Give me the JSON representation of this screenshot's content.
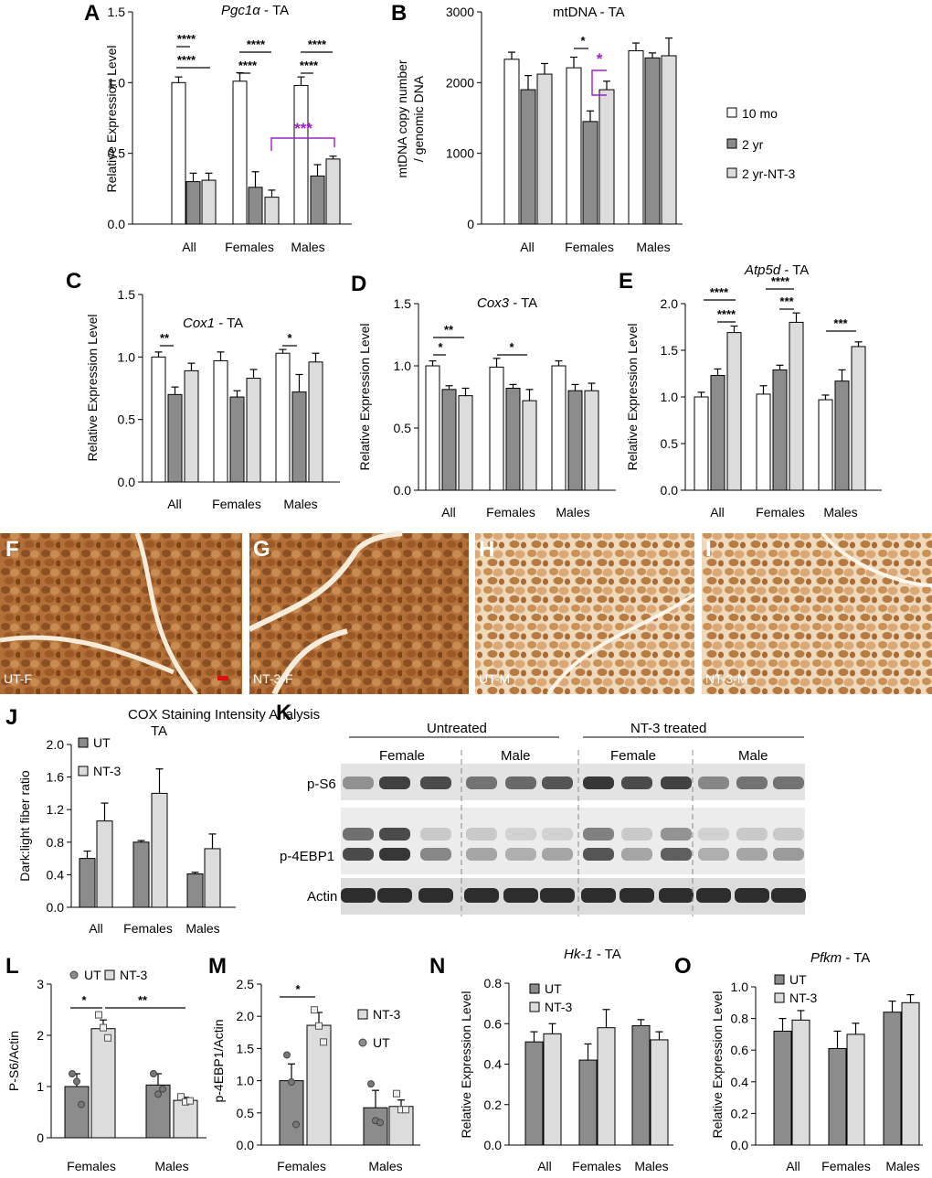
{
  "colors": {
    "white_bar": "#ffffff",
    "dark_bar": "#8c8c8c",
    "light_bar": "#dcdcdc",
    "sig_purple": "#a020c8",
    "stain": "#b5733a"
  },
  "legend_top": {
    "items": [
      "10 mo",
      "2 yr",
      "2 yr-NT-3"
    ]
  },
  "chart_data": [
    {
      "id": "A",
      "type": "bar",
      "title": "Pgc1α - TA",
      "title_italic_part": "Pgc1α",
      "title_rest": " - TA",
      "ylabel": "Relative Expression Level",
      "ylim": [
        0,
        1.5
      ],
      "yticks": [
        "0.0",
        "0.5",
        "1.0",
        "1.5"
      ],
      "categories": [
        "All",
        "Females",
        "Males"
      ],
      "series": [
        {
          "name": "10 mo",
          "values": [
            1.0,
            1.01,
            0.98
          ],
          "errors": [
            0.04,
            0.06,
            0.06
          ]
        },
        {
          "name": "2 yr",
          "values": [
            0.3,
            0.26,
            0.34
          ],
          "errors": [
            0.06,
            0.11,
            0.08
          ]
        },
        {
          "name": "2 yr-NT-3",
          "values": [
            0.31,
            0.19,
            0.46
          ],
          "errors": [
            0.05,
            0.05,
            0.02
          ]
        }
      ],
      "significance": [
        {
          "text": "****"
        },
        {
          "text": "****"
        },
        {
          "text": "****"
        },
        {
          "text": "****"
        },
        {
          "text": "****"
        },
        {
          "text": "****"
        },
        {
          "text": "***"
        }
      ]
    },
    {
      "id": "B",
      "type": "bar",
      "title": "mtDNA - TA",
      "ylabel": "mtDNA copy number / genomic DNA",
      "ylabel_lines": [
        "mtDNA copy number",
        "/ genomic DNA"
      ],
      "ylim": [
        0,
        3000
      ],
      "yticks": [
        "0",
        "1000",
        "2000",
        "3000"
      ],
      "categories": [
        "All",
        "Females",
        "Males"
      ],
      "series": [
        {
          "name": "10 mo",
          "values": [
            2330,
            2210,
            2450
          ],
          "errors": [
            100,
            150,
            110
          ]
        },
        {
          "name": "2 yr",
          "values": [
            1900,
            1450,
            2350
          ],
          "errors": [
            200,
            150,
            70
          ]
        },
        {
          "name": "2 yr-NT-3",
          "values": [
            2120,
            1900,
            2380
          ],
          "errors": [
            150,
            120,
            250
          ]
        }
      ],
      "significance": [
        {
          "text": "*"
        },
        {
          "text": "*"
        }
      ]
    },
    {
      "id": "C",
      "type": "bar",
      "title": "Cox1 - TA",
      "title_italic_part": "Cox1",
      "title_rest": " - TA",
      "ylabel": "Relative Expression Level",
      "ylim": [
        0,
        1.5
      ],
      "yticks": [
        "0.0",
        "0.5",
        "1.0",
        "1.5"
      ],
      "categories": [
        "All",
        "Females",
        "Males"
      ],
      "series": [
        {
          "name": "10 mo",
          "values": [
            1.0,
            0.97,
            1.03
          ],
          "errors": [
            0.04,
            0.07,
            0.03
          ]
        },
        {
          "name": "2 yr",
          "values": [
            0.7,
            0.68,
            0.72
          ],
          "errors": [
            0.06,
            0.05,
            0.14
          ]
        },
        {
          "name": "2 yr-NT-3",
          "values": [
            0.89,
            0.83,
            0.96
          ],
          "errors": [
            0.06,
            0.07,
            0.07
          ]
        }
      ],
      "significance": [
        {
          "text": "**"
        },
        {
          "text": "*"
        }
      ]
    },
    {
      "id": "D",
      "type": "bar",
      "title": "Cox3 - TA",
      "title_italic_part": "Cox3",
      "title_rest": " - TA",
      "ylabel": "Relative Expression Level",
      "ylim": [
        0,
        1.5
      ],
      "yticks": [
        "0.0",
        "0.5",
        "1.0",
        "1.5"
      ],
      "categories": [
        "All",
        "Females",
        "Males"
      ],
      "series": [
        {
          "name": "10 mo",
          "values": [
            1.0,
            0.99,
            1.0
          ],
          "errors": [
            0.04,
            0.07,
            0.04
          ]
        },
        {
          "name": "2 yr",
          "values": [
            0.81,
            0.82,
            0.8
          ],
          "errors": [
            0.03,
            0.03,
            0.05
          ]
        },
        {
          "name": "2 yr-NT-3",
          "values": [
            0.76,
            0.72,
            0.8
          ],
          "errors": [
            0.06,
            0.09,
            0.06
          ]
        }
      ],
      "significance": [
        {
          "text": "*"
        },
        {
          "text": "**"
        },
        {
          "text": "*"
        }
      ]
    },
    {
      "id": "E",
      "type": "bar",
      "title": "Atp5d - TA",
      "title_italic_part": "Atp5d",
      "title_rest": " - TA",
      "ylabel": "Relative Expression Level",
      "ylim": [
        0,
        2.0
      ],
      "yticks": [
        "0.0",
        "0.5",
        "1.0",
        "1.5",
        "2.0"
      ],
      "categories": [
        "All",
        "Females",
        "Males"
      ],
      "series": [
        {
          "name": "10 mo",
          "values": [
            1.0,
            1.03,
            0.97
          ],
          "errors": [
            0.05,
            0.09,
            0.05
          ]
        },
        {
          "name": "2 yr",
          "values": [
            1.23,
            1.29,
            1.17
          ],
          "errors": [
            0.07,
            0.05,
            0.12
          ]
        },
        {
          "name": "2 yr-NT-3",
          "values": [
            1.69,
            1.8,
            1.54
          ],
          "errors": [
            0.07,
            0.1,
            0.05
          ]
        }
      ],
      "significance": [
        {
          "text": "****"
        },
        {
          "text": "****"
        },
        {
          "text": "****"
        },
        {
          "text": "***"
        },
        {
          "text": "***"
        }
      ]
    },
    {
      "id": "J",
      "type": "bar",
      "title": "COX Staining Intensity Analysis",
      "title_line2": "TA",
      "ylabel": "Dark:light fiber ratio",
      "ylim": [
        0,
        2.0
      ],
      "yticks": [
        "0.0",
        "0.4",
        "0.8",
        "1.2",
        "1.6",
        "2.0"
      ],
      "categories": [
        "All",
        "Females",
        "Males"
      ],
      "series": [
        {
          "name": "UT",
          "values": [
            0.6,
            0.8,
            0.41
          ],
          "errors": [
            0.09,
            0.02,
            0.02
          ]
        },
        {
          "name": "NT-3",
          "values": [
            1.06,
            1.4,
            0.72
          ],
          "errors": [
            0.22,
            0.3,
            0.18
          ]
        }
      ]
    },
    {
      "id": "L",
      "type": "bar",
      "ylabel": "P-S6/Actin",
      "ylim": [
        0,
        3
      ],
      "yticks": [
        "0",
        "1",
        "2",
        "3"
      ],
      "categories": [
        "Females",
        "Males"
      ],
      "series": [
        {
          "name": "UT",
          "values": [
            1.0,
            1.03
          ],
          "errors": [
            0.25,
            0.22
          ],
          "points": [
            [
              1.25,
              1.1,
              0.65
            ],
            [
              1.25,
              0.85,
              0.95
            ]
          ]
        },
        {
          "name": "NT-3",
          "values": [
            2.13,
            0.73
          ],
          "errors": [
            0.17,
            0.06
          ],
          "points": [
            [
              2.4,
              2.15,
              1.95
            ],
            [
              0.8,
              0.7,
              0.72
            ]
          ]
        }
      ],
      "significance": [
        {
          "text": "*"
        },
        {
          "text": "**"
        }
      ]
    },
    {
      "id": "M",
      "type": "bar",
      "ylabel": "p-4EBP1/Actin",
      "ylim": [
        0,
        2.5
      ],
      "yticks": [
        "0.0",
        "0.5",
        "1.0",
        "1.5",
        "2.0",
        "2.5"
      ],
      "categories": [
        "Females",
        "Males"
      ],
      "series": [
        {
          "name": "UT",
          "values": [
            1.0,
            0.58
          ],
          "errors": [
            0.26,
            0.27
          ],
          "points": [
            [
              1.4,
              0.98,
              0.32
            ],
            [
              0.95,
              0.38,
              0.35
            ]
          ]
        },
        {
          "name": "NT-3",
          "values": [
            1.86,
            0.6
          ],
          "errors": [
            0.2,
            0.1
          ],
          "points": [
            [
              2.1,
              1.85,
              1.6
            ],
            [
              0.8,
              0.55,
              0.55
            ]
          ]
        }
      ],
      "significance": [
        {
          "text": "*"
        }
      ]
    },
    {
      "id": "N",
      "type": "bar",
      "title": "Hk-1 - TA",
      "title_italic_part": "Hk-1",
      "title_rest": " - TA",
      "ylabel": "Relative Expression Level",
      "ylim": [
        0,
        0.8
      ],
      "yticks": [
        "0.0",
        "0.2",
        "0.4",
        "0.6",
        "0.8"
      ],
      "categories": [
        "All",
        "Females",
        "Males"
      ],
      "series": [
        {
          "name": "UT",
          "values": [
            0.51,
            0.42,
            0.59
          ],
          "errors": [
            0.05,
            0.08,
            0.03
          ]
        },
        {
          "name": "NT-3",
          "values": [
            0.55,
            0.58,
            0.52
          ],
          "errors": [
            0.05,
            0.09,
            0.04
          ]
        }
      ]
    },
    {
      "id": "O",
      "type": "bar",
      "title": "Pfkm - TA",
      "title_italic_part": "Pfkm",
      "title_rest": " - TA",
      "ylabel": "Relative Expression Level",
      "ylim": [
        0,
        1.0
      ],
      "yticks": [
        "0.0",
        "0.2",
        "0.4",
        "0.6",
        "0.8",
        "1.0"
      ],
      "categories": [
        "All",
        "Females",
        "Males"
      ],
      "series": [
        {
          "name": "UT",
          "values": [
            0.72,
            0.61,
            0.84
          ],
          "errors": [
            0.08,
            0.11,
            0.07
          ]
        },
        {
          "name": "NT-3",
          "values": [
            0.79,
            0.7,
            0.9
          ],
          "errors": [
            0.06,
            0.07,
            0.05
          ]
        }
      ]
    }
  ],
  "micrographs": [
    {
      "panel": "F",
      "label": "UT-F"
    },
    {
      "panel": "G",
      "label": "NT-3-F"
    },
    {
      "panel": "H",
      "label": "UT-M"
    },
    {
      "panel": "I",
      "label": "NT-3-M"
    }
  ],
  "blot": {
    "panel": "K",
    "groups": [
      {
        "label": "Untreated"
      },
      {
        "label": "NT-3 treated"
      }
    ],
    "subgroups": [
      {
        "label": "Female"
      },
      {
        "label": "Male"
      },
      {
        "label": "Female"
      },
      {
        "label": "Male"
      }
    ],
    "rows": [
      {
        "label": "p-S6"
      },
      {
        "label": "p-4EBP1"
      },
      {
        "label": "Actin"
      }
    ]
  }
}
